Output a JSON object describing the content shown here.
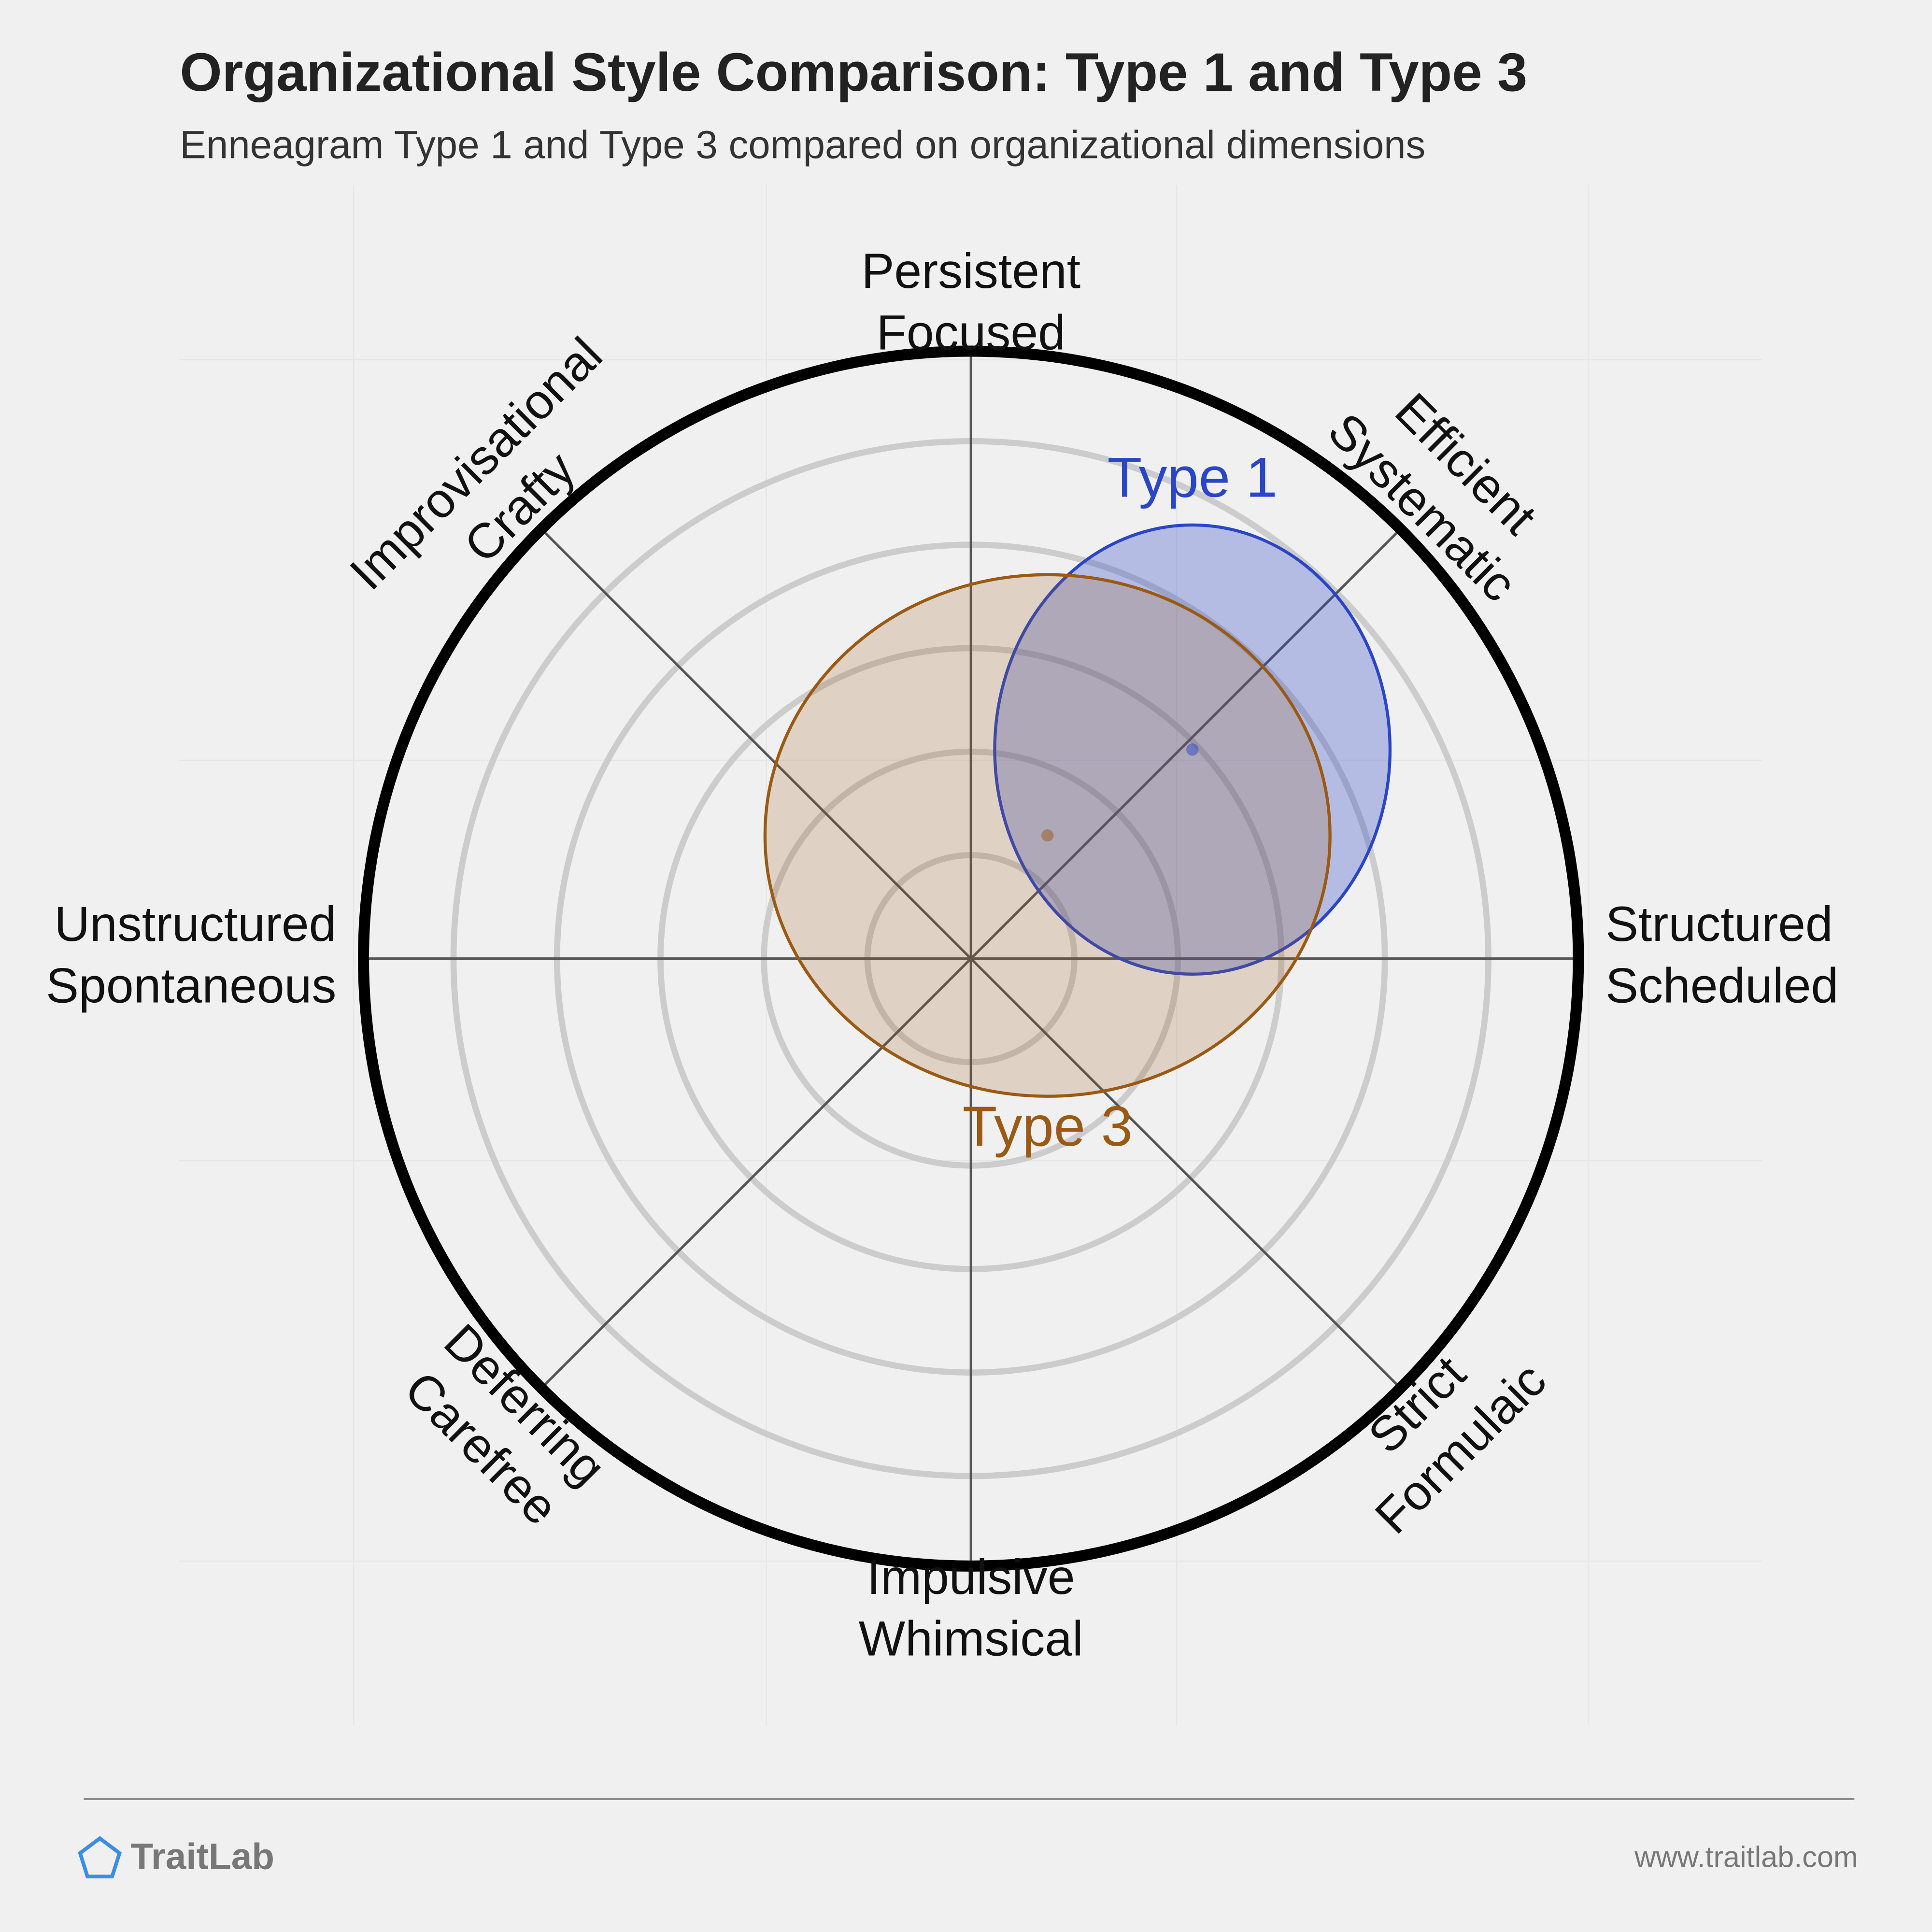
{
  "chart_data": {
    "type": "ellipse-overlap",
    "title": "Organizational Style Comparison: Type 1 and Type 3",
    "subtitle": "Enneagram Type 1 and Type 3 compared on organizational dimensions",
    "rlim": [
      0,
      5.87
    ],
    "rings": [
      1,
      2,
      3,
      4,
      5
    ],
    "axes": [
      {
        "angle": 90,
        "label": [
          "Persistent",
          "Focused"
        ]
      },
      {
        "angle": 45,
        "label": [
          "Efficient",
          "Systematic"
        ]
      },
      {
        "angle": 0,
        "label": [
          "Structured",
          "Scheduled"
        ]
      },
      {
        "angle": 315,
        "label": [
          "Strict",
          "Formulaic"
        ]
      },
      {
        "angle": 270,
        "label": [
          "Impulsive",
          "Whimsical"
        ]
      },
      {
        "angle": 225,
        "label": [
          "Deferring",
          "Carefree"
        ]
      },
      {
        "angle": 180,
        "label": [
          "Unstructured",
          "Spontaneous"
        ]
      },
      {
        "angle": 135,
        "label": [
          "Improvisational",
          "Crafty"
        ]
      }
    ],
    "series": [
      {
        "name": "Type 1",
        "color": "#2a46c8",
        "x": 2.14,
        "y": 2.02,
        "rx": 1.91,
        "ry": 2.17
      },
      {
        "name": "Type 3",
        "color": "#9a5a14",
        "x": 0.74,
        "y": 1.19,
        "rx": 2.73,
        "ry": 2.52
      }
    ]
  },
  "footer": {
    "brand": "TraitLab",
    "url": "www.traitlab.com"
  }
}
